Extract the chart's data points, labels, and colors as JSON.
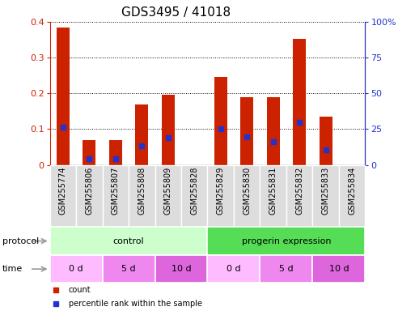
{
  "title": "GDS3495 / 41018",
  "samples": [
    "GSM255774",
    "GSM255806",
    "GSM255807",
    "GSM255808",
    "GSM255809",
    "GSM255828",
    "GSM255829",
    "GSM255830",
    "GSM255831",
    "GSM255832",
    "GSM255833",
    "GSM255834"
  ],
  "count_values": [
    0.385,
    0.07,
    0.07,
    0.168,
    0.197,
    0.0,
    0.245,
    0.188,
    0.188,
    0.353,
    0.135,
    0.0
  ],
  "percentile_values": [
    0.105,
    0.018,
    0.017,
    0.053,
    0.075,
    0.0,
    0.1,
    0.078,
    0.065,
    0.12,
    0.042,
    0.0
  ],
  "bar_color": "#cc2200",
  "percentile_color": "#2233cc",
  "ylim_left": [
    0,
    0.4
  ],
  "ylim_right": [
    0,
    100
  ],
  "yticks_left": [
    0,
    0.1,
    0.2,
    0.3,
    0.4
  ],
  "yticks_right": [
    0,
    25,
    50,
    75,
    100
  ],
  "left_tick_labels": [
    "0",
    "0.1",
    "0.2",
    "0.3",
    "0.4"
  ],
  "right_tick_labels": [
    "0",
    "25",
    "50",
    "75",
    "100%"
  ],
  "protocol_groups": [
    {
      "label": "control",
      "start": 0,
      "end": 6,
      "color": "#ccffcc"
    },
    {
      "label": "progerin expression",
      "start": 6,
      "end": 12,
      "color": "#55dd55"
    }
  ],
  "time_groups": [
    {
      "label": "0 d",
      "start": 0,
      "end": 2,
      "color": "#ffbbff"
    },
    {
      "label": "5 d",
      "start": 2,
      "end": 4,
      "color": "#ee88ee"
    },
    {
      "label": "10 d",
      "start": 4,
      "end": 6,
      "color": "#dd66dd"
    },
    {
      "label": "0 d",
      "start": 6,
      "end": 8,
      "color": "#ffbbff"
    },
    {
      "label": "5 d",
      "start": 8,
      "end": 10,
      "color": "#ee88ee"
    },
    {
      "label": "10 d",
      "start": 10,
      "end": 12,
      "color": "#dd66dd"
    }
  ],
  "legend_items": [
    {
      "label": "count",
      "color": "#cc2200"
    },
    {
      "label": "percentile rank within the sample",
      "color": "#2233cc"
    }
  ],
  "bar_width": 0.5,
  "background_color": "#ffffff",
  "tick_label_color_left": "#cc2200",
  "tick_label_color_right": "#2233cc",
  "title_fontsize": 11,
  "tick_fontsize": 8,
  "label_fontsize": 8,
  "xtick_fontsize": 7,
  "cell_bg": "#dddddd",
  "cell_edge": "#ffffff"
}
